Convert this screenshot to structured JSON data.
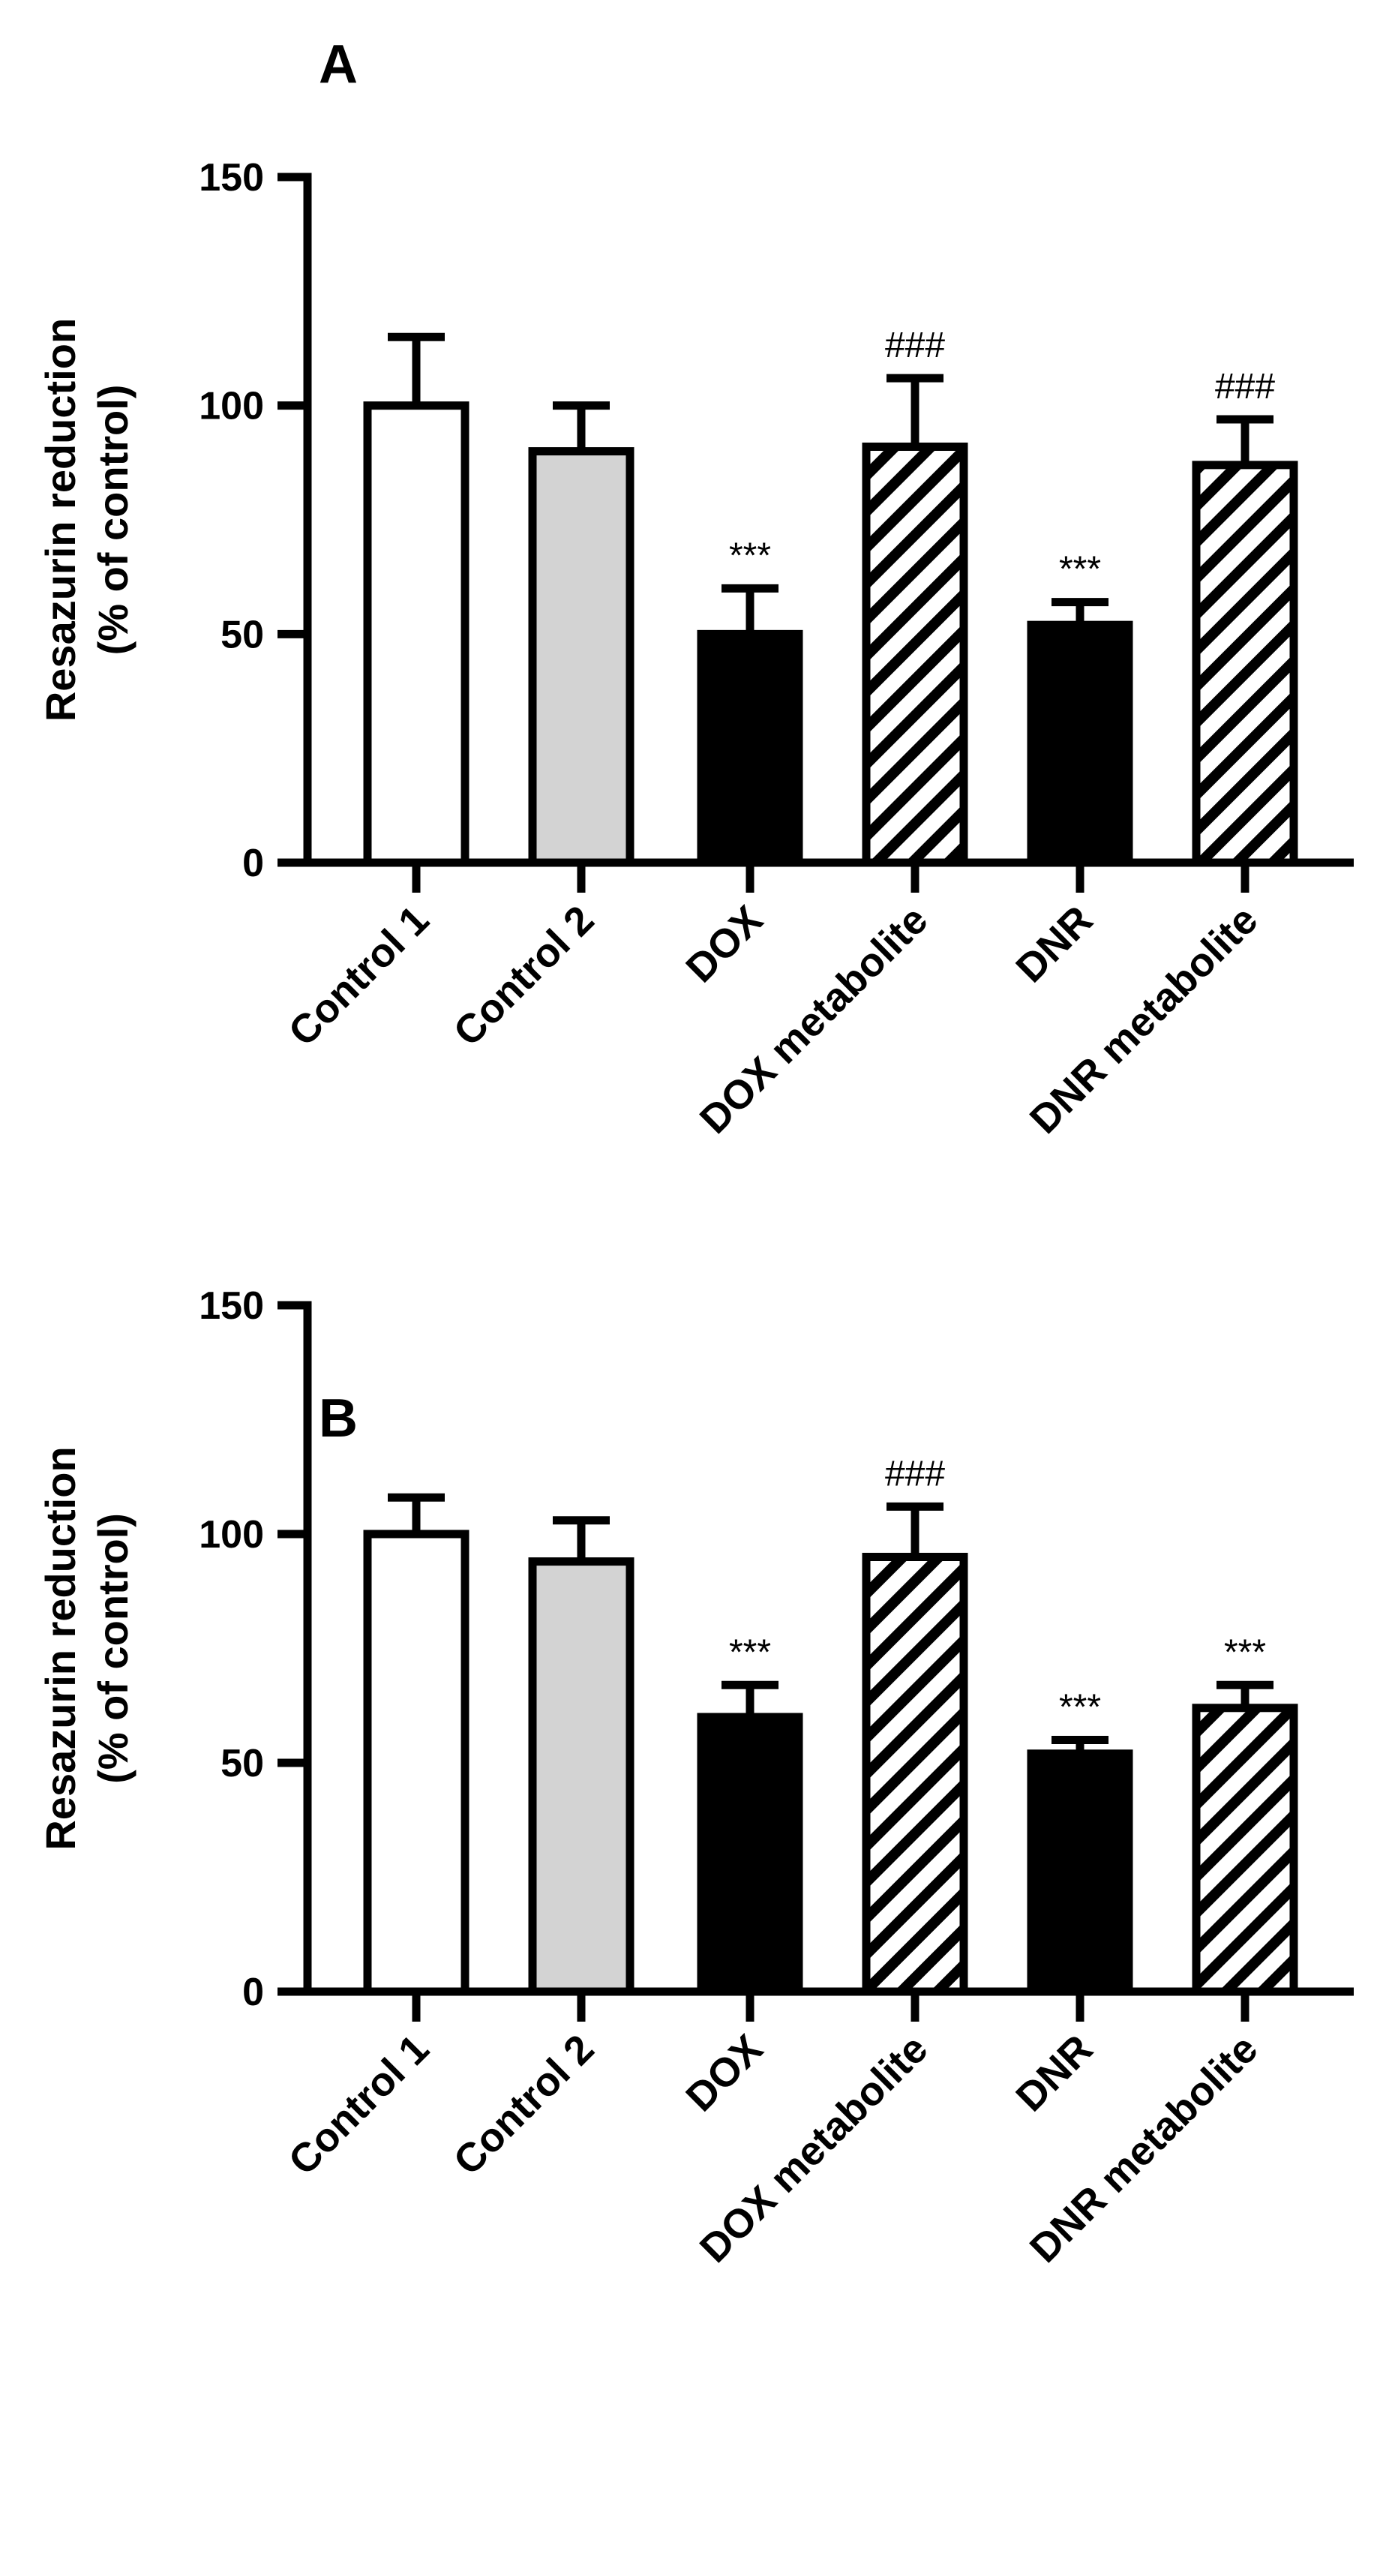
{
  "chart_data": [
    {
      "type": "bar",
      "panel": "A",
      "ylabel_line1": "Resazurin reduction",
      "ylabel_line2": "(% of control)",
      "ylim": [
        0,
        150
      ],
      "yticks": [
        0,
        50,
        100,
        150
      ],
      "categories": [
        "Control 1",
        "Control 2",
        "DOX",
        "DOX metabolite",
        "DNR",
        "DNR metabolite"
      ],
      "values": [
        100,
        90,
        50,
        91,
        52,
        87
      ],
      "errors": [
        15,
        10,
        10,
        15,
        5,
        10
      ],
      "annotations": [
        "",
        "",
        "***",
        "###",
        "***",
        "###"
      ],
      "fills": [
        "white",
        "#d3d3d3",
        "black",
        "hatch",
        "black",
        "hatch"
      ]
    },
    {
      "type": "bar",
      "panel": "B",
      "ylabel_line1": "Resazurin reduction",
      "ylabel_line2": "(% of control)",
      "ylim": [
        0,
        150
      ],
      "yticks": [
        0,
        50,
        100,
        150
      ],
      "categories": [
        "Control 1",
        "Control 2",
        "DOX",
        "DOX metabolite",
        "DNR",
        "DNR metabolite"
      ],
      "values": [
        100,
        94,
        60,
        95,
        52,
        62
      ],
      "errors": [
        8,
        9,
        7,
        11,
        3,
        5
      ],
      "annotations": [
        "",
        "",
        "***",
        "###",
        "***",
        "***"
      ],
      "fills": [
        "white",
        "#d3d3d3",
        "black",
        "hatch",
        "black",
        "hatch"
      ]
    }
  ]
}
